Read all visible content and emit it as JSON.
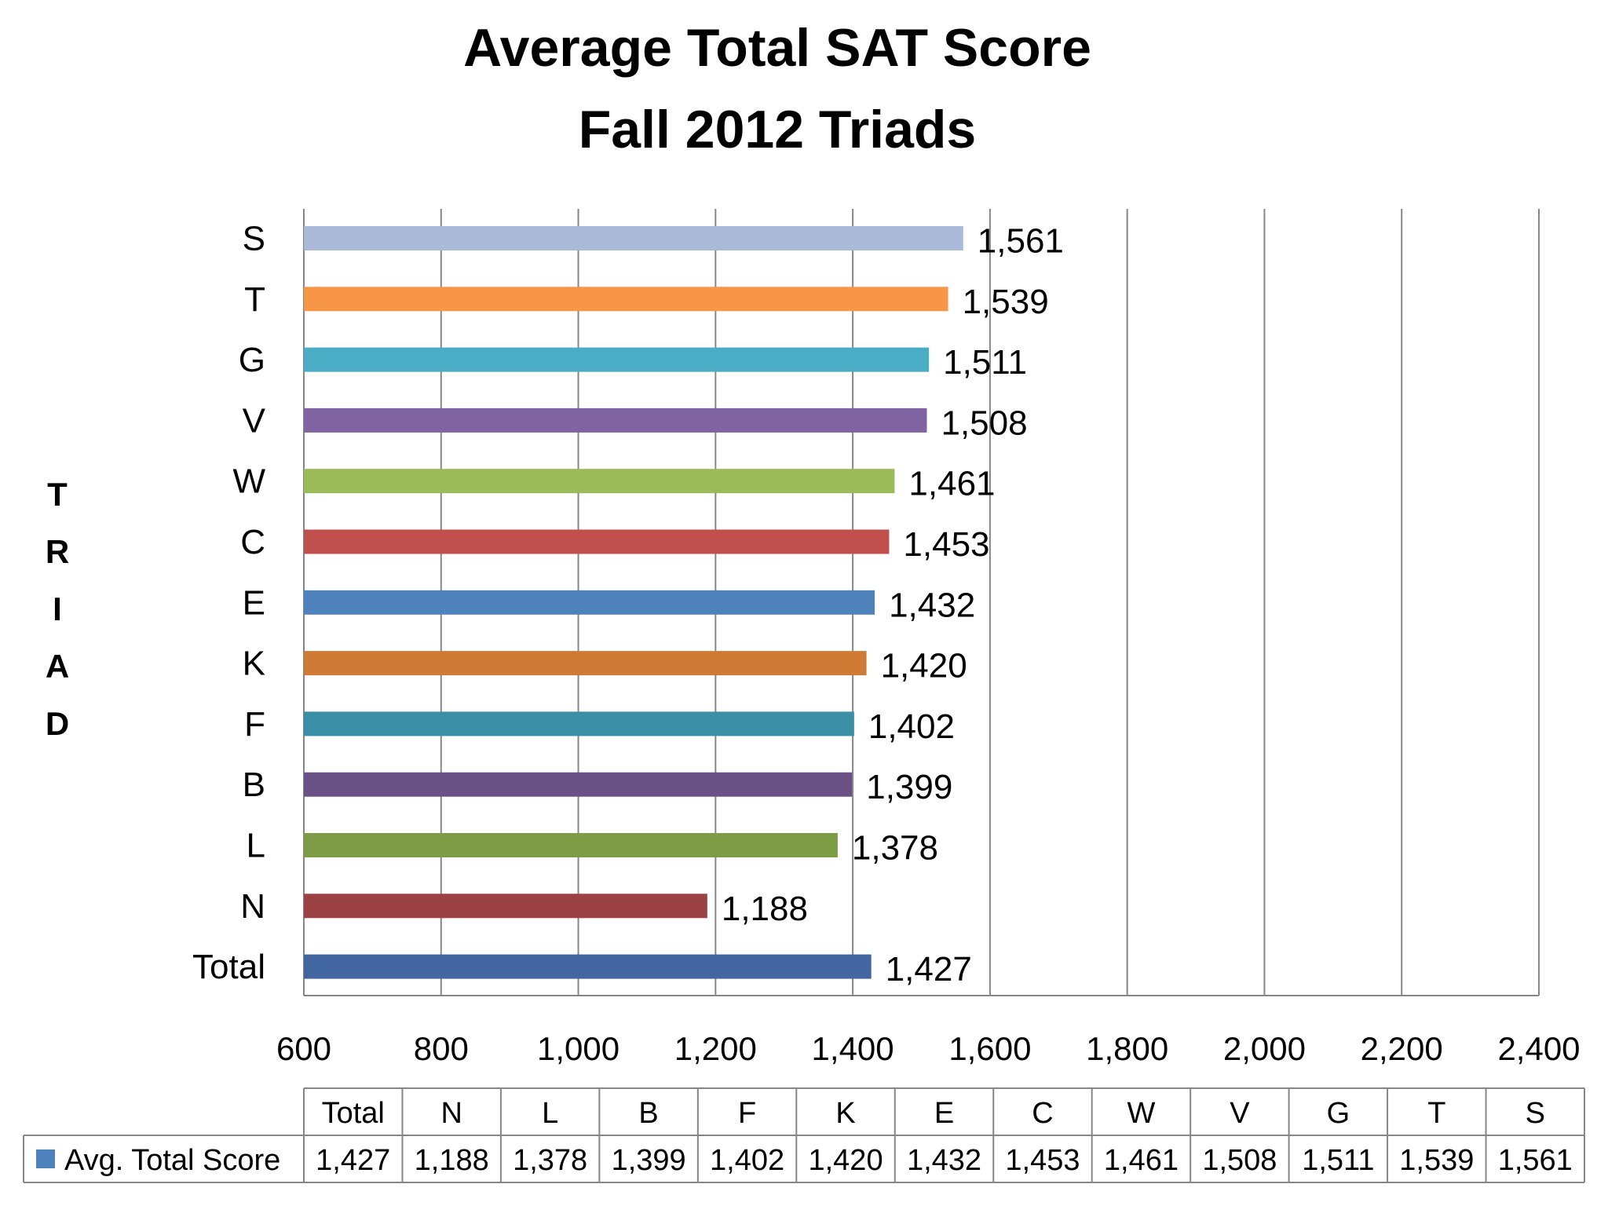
{
  "chart_data": {
    "type": "bar",
    "orientation": "horizontal",
    "title": [
      "Average Total SAT Score",
      "Fall 2012 Triads"
    ],
    "ylabel": "TRIAD",
    "xlabel": "",
    "xlim": [
      600,
      2400
    ],
    "xticks": [
      600,
      800,
      1000,
      1200,
      1400,
      1600,
      1800,
      2000,
      2200,
      2400
    ],
    "xtick_labels": [
      "600",
      "800",
      "1,000",
      "1,200",
      "1,400",
      "1,600",
      "1,800",
      "2,000",
      "2,200",
      "2,400"
    ],
    "grid": "vertical",
    "categories": [
      "Total",
      "N",
      "L",
      "B",
      "F",
      "K",
      "E",
      "C",
      "W",
      "V",
      "G",
      "T",
      "S"
    ],
    "values": [
      1427,
      1188,
      1378,
      1399,
      1402,
      1420,
      1432,
      1453,
      1461,
      1508,
      1511,
      1539,
      1561
    ],
    "value_labels": [
      "1,427",
      "1,188",
      "1,378",
      "1,399",
      "1,402",
      "1,420",
      "1,432",
      "1,453",
      "1,461",
      "1,508",
      "1,511",
      "1,539",
      "1,561"
    ],
    "bar_colors": [
      "#4267a0",
      "#9c4244",
      "#7e9c46",
      "#6a5287",
      "#3a8ea5",
      "#cf7b36",
      "#4f81bd",
      "#c0504d",
      "#9bbb59",
      "#8064a2",
      "#4bacc6",
      "#f79646",
      "#aab9d8"
    ],
    "series": [
      {
        "name": "Avg. Total Score",
        "color": "#4f81bd",
        "values": [
          1427,
          1188,
          1378,
          1399,
          1402,
          1420,
          1432,
          1453,
          1461,
          1508,
          1511,
          1539,
          1561
        ]
      }
    ],
    "data_table": {
      "headers": [
        "Total",
        "N",
        "L",
        "B",
        "F",
        "K",
        "E",
        "C",
        "W",
        "V",
        "G",
        "T",
        "S"
      ],
      "row_label": "Avg. Total Score",
      "row_values": [
        "1,427",
        "1,188",
        "1,378",
        "1,399",
        "1,402",
        "1,420",
        "1,432",
        "1,453",
        "1,461",
        "1,508",
        "1,511",
        "1,539",
        "1,561"
      ]
    }
  }
}
